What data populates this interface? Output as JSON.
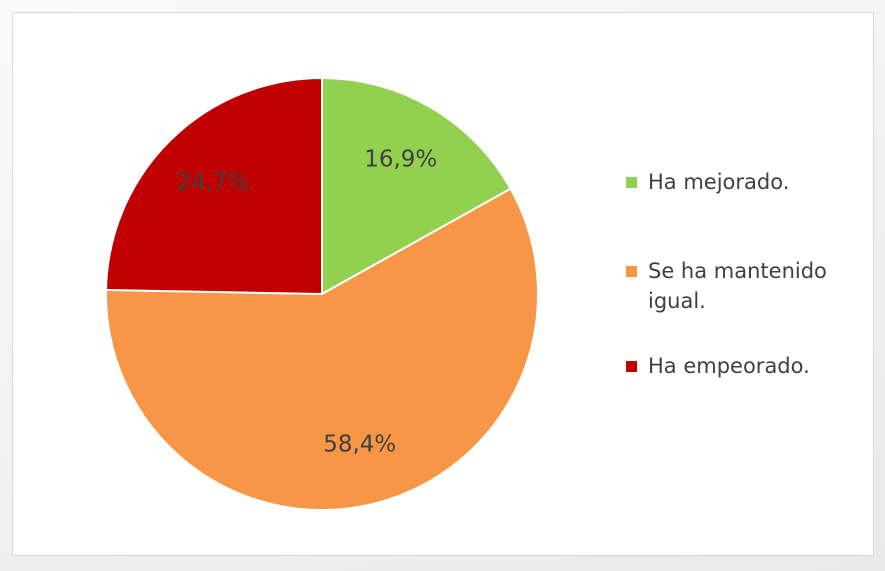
{
  "chart_data": {
    "type": "pie",
    "categories": [
      "Ha mejorado.",
      "Se ha mantenido igual.",
      "Ha empeorado."
    ],
    "values": [
      16.9,
      58.4,
      24.7
    ],
    "value_labels": [
      "16,9%",
      "58,4%",
      "24,7%"
    ],
    "colors": [
      "#92d050",
      "#f79646",
      "#c00000"
    ],
    "legend": "right"
  }
}
